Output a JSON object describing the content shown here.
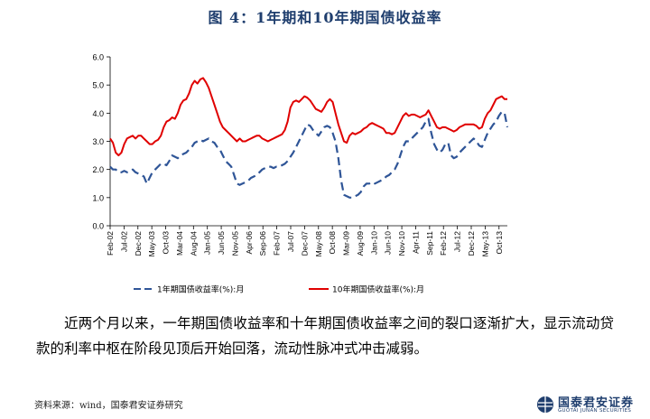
{
  "figure_title": "图 4：1年期和10年期国债收益率",
  "chart_data": {
    "type": "line",
    "title": "",
    "xlabel": "",
    "ylabel": "",
    "ylim": [
      0,
      6
    ],
    "yticks": [
      "0.0",
      "1.0",
      "2.0",
      "3.0",
      "4.0",
      "5.0",
      "6.0"
    ],
    "xticks": [
      "Feb-02",
      "Jul-02",
      "Dec-02",
      "May-03",
      "Oct-03",
      "Mar-04",
      "Aug-04",
      "Jan-05",
      "Jun-05",
      "Nov-05",
      "Apr-06",
      "Sep-06",
      "Feb-07",
      "Jul-07",
      "Dec-07",
      "May-08",
      "Oct-08",
      "Mar-09",
      "Aug-09",
      "Jan-10",
      "Jun-10",
      "Nov-10",
      "Apr-11",
      "Sep-11",
      "Feb-12",
      "Jul-12",
      "Dec-12",
      "May-13",
      "Oct-13"
    ],
    "grid": false,
    "legend_position": "bottom",
    "x_start": "2002-02",
    "x_end": "2014-01",
    "series": [
      {
        "name": "1年期国债收益率(%):月",
        "color": "#2f5597",
        "style": "dashed",
        "values": [
          2.1,
          2.0,
          2.0,
          1.9,
          1.9,
          1.95,
          1.9,
          1.95,
          2.0,
          1.9,
          1.85,
          1.8,
          1.75,
          1.5,
          1.7,
          1.9,
          2.0,
          2.1,
          2.2,
          2.2,
          2.15,
          2.3,
          2.5,
          2.45,
          2.4,
          2.5,
          2.55,
          2.6,
          2.7,
          2.8,
          2.95,
          3.0,
          3.05,
          3.0,
          3.05,
          3.1,
          3.0,
          2.95,
          2.8,
          2.7,
          2.5,
          2.3,
          2.2,
          2.1,
          1.8,
          1.5,
          1.45,
          1.5,
          1.55,
          1.6,
          1.7,
          1.75,
          1.8,
          1.9,
          2.0,
          2.05,
          2.1,
          2.1,
          2.05,
          2.1,
          2.1,
          2.15,
          2.2,
          2.3,
          2.45,
          2.6,
          2.8,
          3.0,
          3.2,
          3.4,
          3.6,
          3.55,
          3.4,
          3.3,
          3.2,
          3.35,
          3.5,
          3.55,
          3.5,
          3.3,
          3.0,
          2.4,
          1.6,
          1.1,
          1.05,
          1.0,
          1.0,
          1.05,
          1.1,
          1.2,
          1.4,
          1.5,
          1.5,
          1.55,
          1.5,
          1.55,
          1.6,
          1.65,
          1.75,
          1.8,
          1.9,
          2.0,
          2.2,
          2.5,
          2.8,
          3.0,
          3.0,
          3.1,
          3.2,
          3.3,
          3.4,
          3.5,
          3.7,
          3.8,
          3.3,
          2.9,
          2.7,
          2.6,
          2.7,
          2.9,
          2.95,
          2.5,
          2.4,
          2.45,
          2.6,
          2.7,
          2.8,
          2.9,
          3.0,
          3.1,
          3.0,
          2.85,
          2.8,
          3.05,
          3.3,
          3.45,
          3.6,
          3.7,
          3.9,
          4.05,
          4.0,
          3.5
        ]
      },
      {
        "name": "10年期国债收益率(%):月",
        "color": "#e00000",
        "style": "solid",
        "values": [
          3.1,
          2.95,
          2.6,
          2.5,
          2.6,
          2.9,
          3.1,
          3.15,
          3.2,
          3.1,
          3.2,
          3.2,
          3.1,
          3.0,
          2.9,
          2.9,
          3.0,
          3.05,
          3.2,
          3.5,
          3.7,
          3.75,
          3.85,
          3.8,
          4.0,
          4.3,
          4.45,
          4.5,
          4.7,
          5.0,
          5.15,
          5.05,
          5.2,
          5.25,
          5.1,
          4.9,
          4.6,
          4.3,
          4.0,
          3.7,
          3.5,
          3.4,
          3.3,
          3.2,
          3.1,
          3.0,
          3.1,
          3.0,
          3.0,
          3.05,
          3.1,
          3.15,
          3.2,
          3.2,
          3.1,
          3.05,
          3.0,
          3.05,
          3.1,
          3.15,
          3.2,
          3.25,
          3.4,
          3.7,
          4.2,
          4.4,
          4.45,
          4.4,
          4.5,
          4.6,
          4.55,
          4.45,
          4.3,
          4.15,
          4.1,
          4.05,
          4.2,
          4.4,
          4.5,
          4.4,
          4.0,
          3.6,
          3.3,
          3.0,
          2.95,
          3.2,
          3.3,
          3.25,
          3.3,
          3.35,
          3.45,
          3.5,
          3.6,
          3.65,
          3.6,
          3.55,
          3.5,
          3.45,
          3.3,
          3.3,
          3.25,
          3.3,
          3.5,
          3.7,
          3.9,
          4.0,
          3.9,
          3.95,
          3.95,
          3.9,
          3.85,
          3.9,
          3.95,
          4.1,
          3.9,
          3.7,
          3.5,
          3.45,
          3.5,
          3.5,
          3.45,
          3.4,
          3.35,
          3.4,
          3.5,
          3.55,
          3.6,
          3.6,
          3.6,
          3.6,
          3.55,
          3.45,
          3.5,
          3.8,
          4.0,
          4.1,
          4.3,
          4.5,
          4.55,
          4.6,
          4.5,
          4.5
        ]
      }
    ]
  },
  "body_text": "近两个月以来，一年期国债收益率和十年期国债收益率之间的裂口逐渐扩大，显示流动贷款的利率中枢在阶段见顶后开始回落，流动性脉冲式冲击减弱。",
  "source_text": "资料来源：wind，国泰君安证券研究",
  "logo": {
    "name_cn": "国泰君安证券",
    "name_en": "GUOTAI JUNAN SECURITIES",
    "color": "#1f3e6e"
  }
}
